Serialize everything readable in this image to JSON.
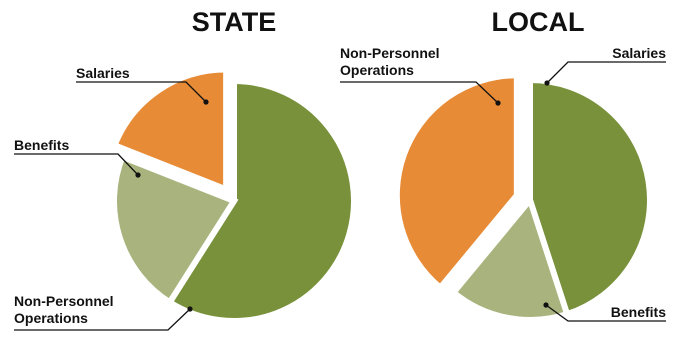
{
  "colors": {
    "salaries": "#78913a",
    "benefits": "#a8b37d",
    "non_personnel": "#e88b36",
    "leader": "#111111",
    "separator": "#ffffff"
  },
  "chart_data": [
    {
      "type": "pie",
      "title": "STATE",
      "slices": [
        {
          "key": "salaries",
          "label": "Salaries",
          "value": 59
        },
        {
          "key": "benefits",
          "label": "Benefits",
          "value": 22
        },
        {
          "key": "non_personnel",
          "label": [
            "Non-Personnel",
            "Operations"
          ],
          "value": 19,
          "exploded": true
        }
      ],
      "legend": "none"
    },
    {
      "type": "pie",
      "title": "LOCAL",
      "slices": [
        {
          "key": "salaries",
          "label": "Salaries",
          "value": 45
        },
        {
          "key": "benefits",
          "label": "Benefits",
          "value": 16
        },
        {
          "key": "non_personnel",
          "label": [
            "Non-Personnel",
            "Operations"
          ],
          "value": 39,
          "exploded": true
        }
      ],
      "legend": "none"
    }
  ]
}
